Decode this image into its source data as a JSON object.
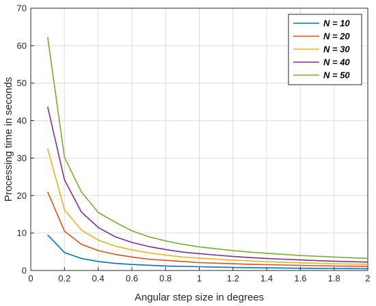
{
  "chart_data": {
    "type": "line",
    "title": "",
    "xlabel": "Angular step size in degrees",
    "ylabel": "Processing time in seconds",
    "xlim": [
      0,
      2
    ],
    "ylim": [
      0,
      70
    ],
    "xticks": [
      "0",
      "0.2",
      "0.4",
      "0.6",
      "0.8",
      "1",
      "1.2",
      "1.4",
      "1.6",
      "1.8",
      "2"
    ],
    "yticks": [
      "0",
      "10",
      "20",
      "30",
      "40",
      "50",
      "60",
      "70"
    ],
    "grid": true,
    "legend_position": "top-right",
    "x": [
      0.1,
      0.2,
      0.3,
      0.4,
      0.5,
      0.6,
      0.7,
      0.8,
      0.9,
      1.0,
      1.1,
      1.2,
      1.3,
      1.4,
      1.5,
      1.6,
      1.7,
      1.8,
      1.9,
      2.0
    ],
    "series": [
      {
        "name": "N = 10",
        "color": "#0072BD",
        "values": [
          9.5,
          4.8,
          3.2,
          2.4,
          1.9,
          1.6,
          1.4,
          1.2,
          1.1,
          1.0,
          0.9,
          0.8,
          0.75,
          0.7,
          0.65,
          0.6,
          0.57,
          0.54,
          0.51,
          0.48
        ]
      },
      {
        "name": "N = 20",
        "color": "#D95319",
        "values": [
          21.0,
          10.5,
          7.0,
          5.3,
          4.3,
          3.6,
          3.0,
          2.7,
          2.4,
          2.1,
          1.95,
          1.8,
          1.65,
          1.55,
          1.45,
          1.35,
          1.27,
          1.2,
          1.13,
          1.07
        ]
      },
      {
        "name": "N = 30",
        "color": "#EDB120",
        "values": [
          32.5,
          16.2,
          10.8,
          8.1,
          6.5,
          5.5,
          4.7,
          4.1,
          3.6,
          3.3,
          3.0,
          2.75,
          2.55,
          2.35,
          2.2,
          2.05,
          1.93,
          1.82,
          1.72,
          1.63
        ]
      },
      {
        "name": "N = 40",
        "color": "#7E2F8E",
        "values": [
          43.7,
          24.2,
          15.6,
          11.5,
          9.0,
          7.5,
          6.4,
          5.6,
          4.9,
          4.5,
          4.1,
          3.75,
          3.45,
          3.2,
          3.0,
          2.8,
          2.63,
          2.48,
          2.35,
          2.22
        ]
      },
      {
        "name": "N = 50",
        "color": "#77AC30",
        "values": [
          62.3,
          30.2,
          21.0,
          15.5,
          12.9,
          10.6,
          9.0,
          7.9,
          7.0,
          6.3,
          5.8,
          5.3,
          4.9,
          4.6,
          4.3,
          4.0,
          3.8,
          3.6,
          3.4,
          3.2
        ]
      }
    ]
  }
}
